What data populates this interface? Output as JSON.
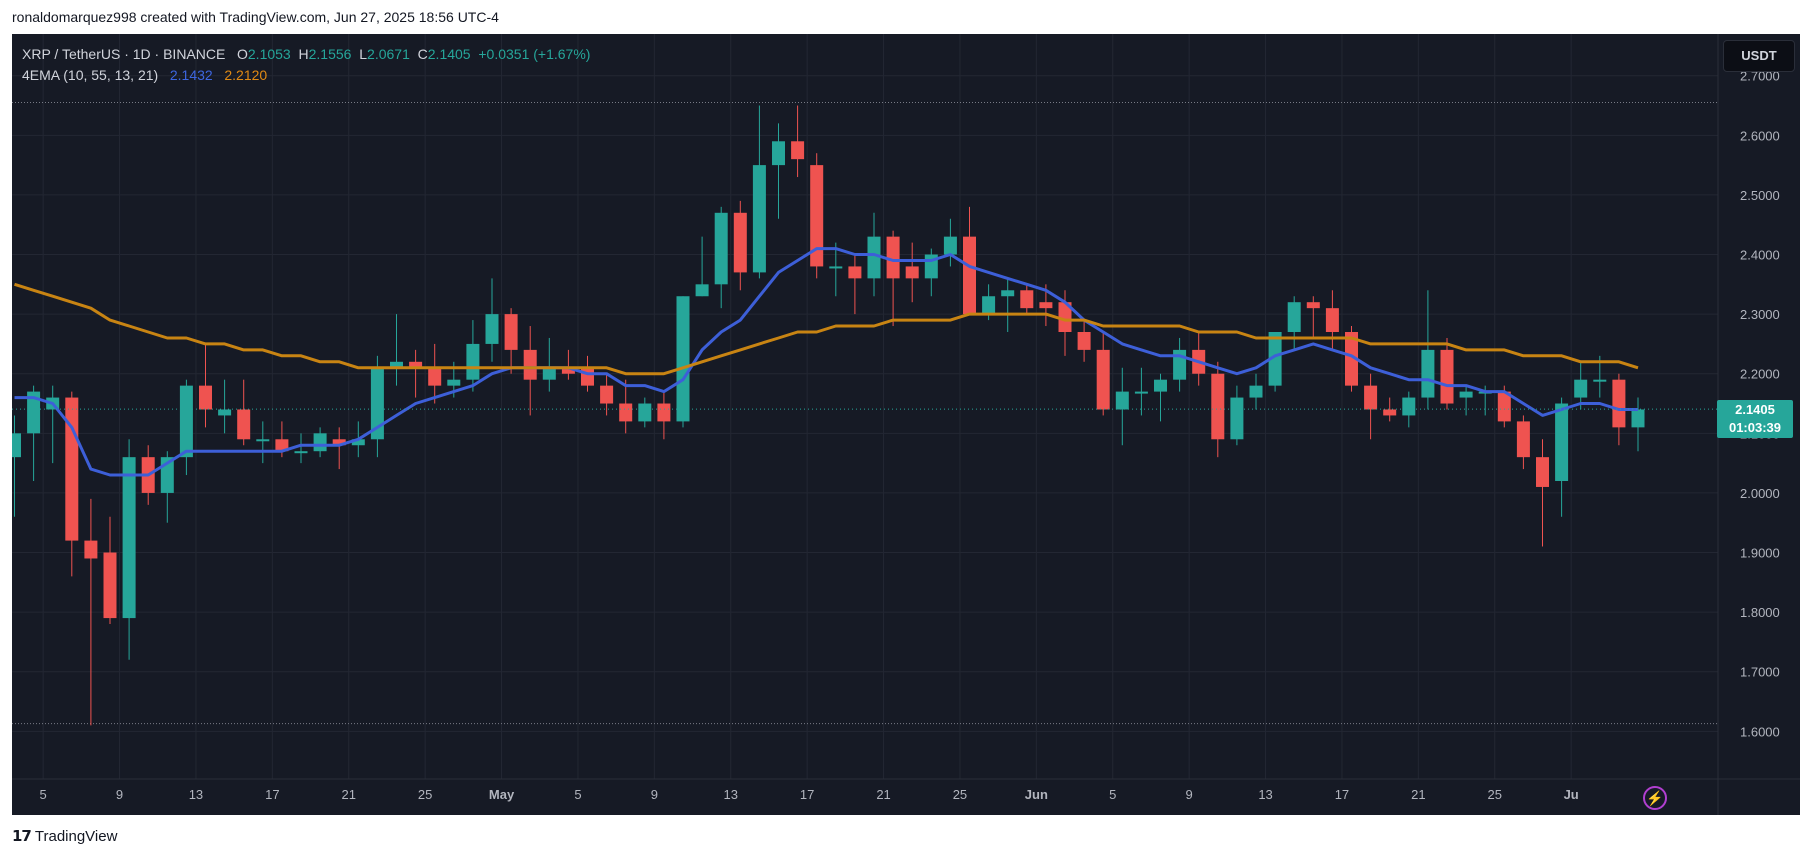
{
  "header": {
    "attribution": "ronaldomarquez998 created with TradingView.com, Jun 27, 2025 18:56 UTC-4"
  },
  "legend": {
    "symbol": "XRP / TetherUS · 1D · BINANCE",
    "o_label": "O",
    "o_value": "2.1053",
    "h_label": "H",
    "h_value": "2.1556",
    "l_label": "L",
    "l_value": "2.0671",
    "c_label": "C",
    "c_value": "2.1405",
    "change": "+0.0351 (+1.67%)",
    "indicator": "4EMA (10, 55, 13, 21)",
    "ema_fast_value": "2.1432",
    "ema_slow_value": "2.2120"
  },
  "currency_button": "USDT",
  "last_price": {
    "price": "2.1405",
    "countdown": "01:03:39"
  },
  "footer": {
    "brand": "TradingView",
    "logo_mark": "17"
  },
  "colors": {
    "background": "#161a25",
    "up": "#26a69a",
    "down": "#ef5350",
    "ema_fast": "#3d5fd8",
    "ema_slow": "#c88413",
    "grid": "#232733"
  },
  "chart_data": {
    "type": "candlestick",
    "ylim": [
      1.52,
      2.77
    ],
    "y_ticks": [
      "2.7000",
      "2.6000",
      "2.5000",
      "2.4000",
      "2.3000",
      "2.2000",
      "2.1000",
      "2.0000",
      "1.9000",
      "1.8000",
      "1.7000",
      "1.6000"
    ],
    "x_ticks": [
      "5",
      "9",
      "13",
      "17",
      "21",
      "25",
      "May",
      "5",
      "9",
      "13",
      "17",
      "21",
      "25",
      "Jun",
      "5",
      "9",
      "13",
      "17",
      "21",
      "25",
      "Ju"
    ],
    "range_lines": [
      2.655,
      1.613
    ],
    "candles": [
      {
        "o": 2.06,
        "h": 2.13,
        "l": 1.96,
        "c": 2.1
      },
      {
        "o": 2.1,
        "h": 2.18,
        "l": 2.02,
        "c": 2.17
      },
      {
        "o": 2.14,
        "h": 2.18,
        "l": 2.05,
        "c": 2.16
      },
      {
        "o": 2.16,
        "h": 2.17,
        "l": 1.86,
        "c": 1.92
      },
      {
        "o": 1.92,
        "h": 1.99,
        "l": 1.61,
        "c": 1.89
      },
      {
        "o": 1.9,
        "h": 1.96,
        "l": 1.78,
        "c": 1.79
      },
      {
        "o": 1.79,
        "h": 2.09,
        "l": 1.72,
        "c": 2.06
      },
      {
        "o": 2.06,
        "h": 2.08,
        "l": 1.98,
        "c": 2.0
      },
      {
        "o": 2.0,
        "h": 2.07,
        "l": 1.95,
        "c": 2.06
      },
      {
        "o": 2.06,
        "h": 2.19,
        "l": 2.03,
        "c": 2.18
      },
      {
        "o": 2.18,
        "h": 2.25,
        "l": 2.11,
        "c": 2.14
      },
      {
        "o": 2.13,
        "h": 2.19,
        "l": 2.1,
        "c": 2.14
      },
      {
        "o": 2.14,
        "h": 2.19,
        "l": 2.08,
        "c": 2.09
      },
      {
        "o": 2.09,
        "h": 2.12,
        "l": 2.05,
        "c": 2.09
      },
      {
        "o": 2.09,
        "h": 2.12,
        "l": 2.06,
        "c": 2.07
      },
      {
        "o": 2.07,
        "h": 2.1,
        "l": 2.05,
        "c": 2.07
      },
      {
        "o": 2.07,
        "h": 2.11,
        "l": 2.06,
        "c": 2.1
      },
      {
        "o": 2.09,
        "h": 2.11,
        "l": 2.04,
        "c": 2.08
      },
      {
        "o": 2.08,
        "h": 2.12,
        "l": 2.06,
        "c": 2.09
      },
      {
        "o": 2.09,
        "h": 2.23,
        "l": 2.06,
        "c": 2.21
      },
      {
        "o": 2.21,
        "h": 2.3,
        "l": 2.18,
        "c": 2.22
      },
      {
        "o": 2.22,
        "h": 2.24,
        "l": 2.16,
        "c": 2.21
      },
      {
        "o": 2.21,
        "h": 2.25,
        "l": 2.15,
        "c": 2.18
      },
      {
        "o": 2.18,
        "h": 2.22,
        "l": 2.16,
        "c": 2.19
      },
      {
        "o": 2.19,
        "h": 2.29,
        "l": 2.17,
        "c": 2.25
      },
      {
        "o": 2.25,
        "h": 2.36,
        "l": 2.22,
        "c": 2.3
      },
      {
        "o": 2.3,
        "h": 2.31,
        "l": 2.2,
        "c": 2.24
      },
      {
        "o": 2.24,
        "h": 2.28,
        "l": 2.13,
        "c": 2.19
      },
      {
        "o": 2.19,
        "h": 2.26,
        "l": 2.17,
        "c": 2.21
      },
      {
        "o": 2.21,
        "h": 2.24,
        "l": 2.19,
        "c": 2.2
      },
      {
        "o": 2.21,
        "h": 2.23,
        "l": 2.17,
        "c": 2.18
      },
      {
        "o": 2.18,
        "h": 2.2,
        "l": 2.13,
        "c": 2.15
      },
      {
        "o": 2.15,
        "h": 2.19,
        "l": 2.1,
        "c": 2.12
      },
      {
        "o": 2.12,
        "h": 2.16,
        "l": 2.11,
        "c": 2.15
      },
      {
        "o": 2.15,
        "h": 2.17,
        "l": 2.09,
        "c": 2.12
      },
      {
        "o": 2.12,
        "h": 2.33,
        "l": 2.11,
        "c": 2.33
      },
      {
        "o": 2.33,
        "h": 2.43,
        "l": 2.33,
        "c": 2.35
      },
      {
        "o": 2.35,
        "h": 2.48,
        "l": 2.31,
        "c": 2.47
      },
      {
        "o": 2.47,
        "h": 2.49,
        "l": 2.34,
        "c": 2.37
      },
      {
        "o": 2.37,
        "h": 2.65,
        "l": 2.36,
        "c": 2.55
      },
      {
        "o": 2.55,
        "h": 2.62,
        "l": 2.46,
        "c": 2.59
      },
      {
        "o": 2.59,
        "h": 2.65,
        "l": 2.53,
        "c": 2.56
      },
      {
        "o": 2.55,
        "h": 2.57,
        "l": 2.36,
        "c": 2.38
      },
      {
        "o": 2.38,
        "h": 2.42,
        "l": 2.33,
        "c": 2.38
      },
      {
        "o": 2.38,
        "h": 2.4,
        "l": 2.3,
        "c": 2.36
      },
      {
        "o": 2.36,
        "h": 2.47,
        "l": 2.33,
        "c": 2.43
      },
      {
        "o": 2.43,
        "h": 2.44,
        "l": 2.28,
        "c": 2.36
      },
      {
        "o": 2.38,
        "h": 2.42,
        "l": 2.32,
        "c": 2.36
      },
      {
        "o": 2.36,
        "h": 2.41,
        "l": 2.33,
        "c": 2.4
      },
      {
        "o": 2.4,
        "h": 2.46,
        "l": 2.38,
        "c": 2.43
      },
      {
        "o": 2.43,
        "h": 2.48,
        "l": 2.3,
        "c": 2.3
      },
      {
        "o": 2.3,
        "h": 2.35,
        "l": 2.29,
        "c": 2.33
      },
      {
        "o": 2.33,
        "h": 2.36,
        "l": 2.27,
        "c": 2.34
      },
      {
        "o": 2.34,
        "h": 2.35,
        "l": 2.3,
        "c": 2.31
      },
      {
        "o": 2.32,
        "h": 2.35,
        "l": 2.28,
        "c": 2.31
      },
      {
        "o": 2.32,
        "h": 2.34,
        "l": 2.23,
        "c": 2.27
      },
      {
        "o": 2.27,
        "h": 2.29,
        "l": 2.22,
        "c": 2.24
      },
      {
        "o": 2.24,
        "h": 2.27,
        "l": 2.13,
        "c": 2.14
      },
      {
        "o": 2.14,
        "h": 2.21,
        "l": 2.08,
        "c": 2.17
      },
      {
        "o": 2.17,
        "h": 2.21,
        "l": 2.13,
        "c": 2.17
      },
      {
        "o": 2.17,
        "h": 2.2,
        "l": 2.12,
        "c": 2.19
      },
      {
        "o": 2.19,
        "h": 2.26,
        "l": 2.17,
        "c": 2.24
      },
      {
        "o": 2.24,
        "h": 2.27,
        "l": 2.18,
        "c": 2.2
      },
      {
        "o": 2.2,
        "h": 2.22,
        "l": 2.06,
        "c": 2.09
      },
      {
        "o": 2.09,
        "h": 2.18,
        "l": 2.08,
        "c": 2.16
      },
      {
        "o": 2.16,
        "h": 2.2,
        "l": 2.14,
        "c": 2.18
      },
      {
        "o": 2.18,
        "h": 2.27,
        "l": 2.17,
        "c": 2.27
      },
      {
        "o": 2.27,
        "h": 2.33,
        "l": 2.24,
        "c": 2.32
      },
      {
        "o": 2.32,
        "h": 2.33,
        "l": 2.26,
        "c": 2.31
      },
      {
        "o": 2.31,
        "h": 2.34,
        "l": 2.24,
        "c": 2.27
      },
      {
        "o": 2.27,
        "h": 2.28,
        "l": 2.17,
        "c": 2.18
      },
      {
        "o": 2.18,
        "h": 2.2,
        "l": 2.09,
        "c": 2.14
      },
      {
        "o": 2.14,
        "h": 2.16,
        "l": 2.12,
        "c": 2.13
      },
      {
        "o": 2.13,
        "h": 2.17,
        "l": 2.11,
        "c": 2.16
      },
      {
        "o": 2.16,
        "h": 2.34,
        "l": 2.14,
        "c": 2.24
      },
      {
        "o": 2.24,
        "h": 2.26,
        "l": 2.14,
        "c": 2.15
      },
      {
        "o": 2.16,
        "h": 2.18,
        "l": 2.13,
        "c": 2.17
      },
      {
        "o": 2.17,
        "h": 2.18,
        "l": 2.13,
        "c": 2.17
      },
      {
        "o": 2.17,
        "h": 2.18,
        "l": 2.11,
        "c": 2.12
      },
      {
        "o": 2.12,
        "h": 2.13,
        "l": 2.04,
        "c": 2.06
      },
      {
        "o": 2.06,
        "h": 2.09,
        "l": 1.91,
        "c": 2.01
      },
      {
        "o": 2.02,
        "h": 2.16,
        "l": 1.96,
        "c": 2.15
      },
      {
        "o": 2.16,
        "h": 2.22,
        "l": 2.14,
        "c": 2.19
      },
      {
        "o": 2.19,
        "h": 2.23,
        "l": 2.16,
        "c": 2.19
      },
      {
        "o": 2.19,
        "h": 2.2,
        "l": 2.08,
        "c": 2.11
      },
      {
        "o": 2.11,
        "h": 2.16,
        "l": 2.07,
        "c": 2.14
      }
    ],
    "series": [
      {
        "name": "EMA 10",
        "values": [
          2.16,
          2.16,
          2.15,
          2.11,
          2.04,
          2.03,
          2.03,
          2.03,
          2.05,
          2.07,
          2.07,
          2.07,
          2.07,
          2.07,
          2.07,
          2.08,
          2.08,
          2.08,
          2.09,
          2.11,
          2.13,
          2.15,
          2.16,
          2.17,
          2.18,
          2.2,
          2.21,
          2.21,
          2.21,
          2.21,
          2.2,
          2.2,
          2.18,
          2.18,
          2.17,
          2.19,
          2.24,
          2.27,
          2.29,
          2.33,
          2.37,
          2.39,
          2.41,
          2.41,
          2.4,
          2.4,
          2.39,
          2.39,
          2.39,
          2.4,
          2.38,
          2.37,
          2.36,
          2.35,
          2.34,
          2.32,
          2.29,
          2.27,
          2.25,
          2.24,
          2.23,
          2.23,
          2.22,
          2.21,
          2.2,
          2.21,
          2.23,
          2.24,
          2.25,
          2.24,
          2.23,
          2.21,
          2.2,
          2.19,
          2.19,
          2.18,
          2.18,
          2.17,
          2.17,
          2.15,
          2.13,
          2.14,
          2.15,
          2.15,
          2.14,
          2.14
        ]
      },
      {
        "name": "EMA 55",
        "values": [
          2.35,
          2.34,
          2.33,
          2.32,
          2.31,
          2.29,
          2.28,
          2.27,
          2.26,
          2.26,
          2.25,
          2.25,
          2.24,
          2.24,
          2.23,
          2.23,
          2.22,
          2.22,
          2.21,
          2.21,
          2.21,
          2.21,
          2.21,
          2.21,
          2.21,
          2.21,
          2.21,
          2.21,
          2.21,
          2.21,
          2.21,
          2.21,
          2.2,
          2.2,
          2.2,
          2.21,
          2.22,
          2.23,
          2.24,
          2.25,
          2.26,
          2.27,
          2.27,
          2.28,
          2.28,
          2.28,
          2.29,
          2.29,
          2.29,
          2.29,
          2.3,
          2.3,
          2.3,
          2.3,
          2.3,
          2.29,
          2.29,
          2.28,
          2.28,
          2.28,
          2.28,
          2.28,
          2.27,
          2.27,
          2.27,
          2.26,
          2.26,
          2.26,
          2.26,
          2.26,
          2.26,
          2.25,
          2.25,
          2.25,
          2.25,
          2.25,
          2.24,
          2.24,
          2.24,
          2.23,
          2.23,
          2.23,
          2.22,
          2.22,
          2.22,
          2.21
        ]
      }
    ]
  }
}
